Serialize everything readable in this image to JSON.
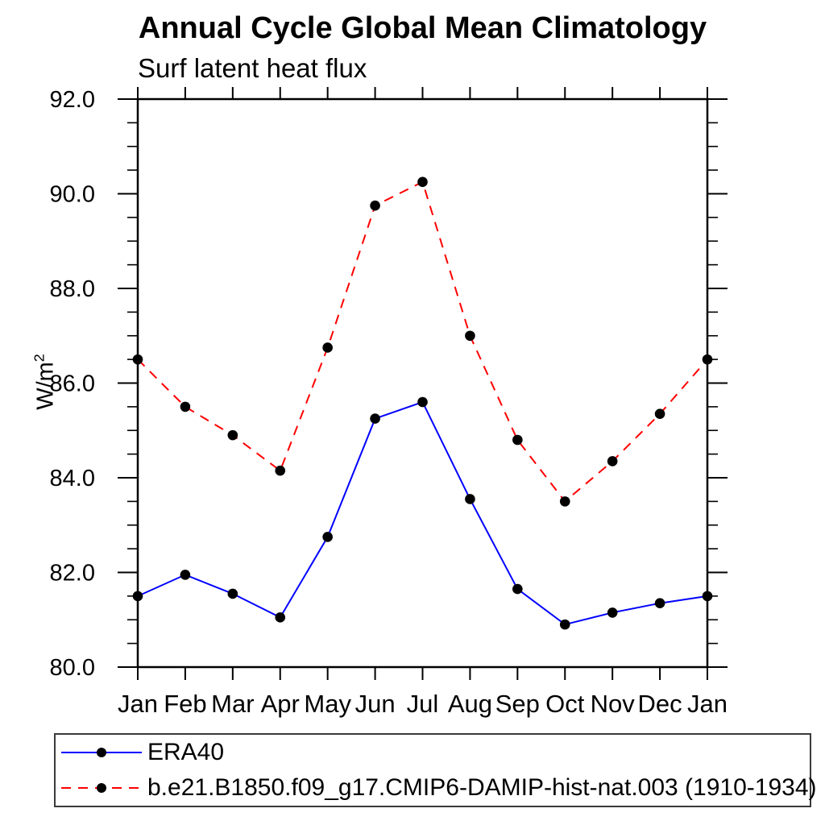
{
  "chart_data": {
    "type": "line",
    "title": "Annual Cycle Global Mean Climatology",
    "subtitle": "Surf latent heat flux",
    "ylabel_base": "W/m",
    "ylabel_sup": "2",
    "xlabel": "",
    "categories": [
      "Jan",
      "Feb",
      "Mar",
      "Apr",
      "May",
      "Jun",
      "Jul",
      "Aug",
      "Sep",
      "Oct",
      "Nov",
      "Dec",
      "Jan"
    ],
    "ylim": [
      80.0,
      92.0
    ],
    "ytick_interval": 2.0,
    "yminor_interval": 0.5,
    "ytick_labels": [
      "80.0",
      "82.0",
      "84.0",
      "86.0",
      "88.0",
      "90.0",
      "92.0"
    ],
    "grid": false,
    "legend_position": "bottom-left-box",
    "marker_color": "#000000",
    "axis_color": "#000000",
    "series": [
      {
        "name": "ERA40",
        "color": "#0000ff",
        "style": "solid",
        "marker": "filled-circle",
        "values": [
          81.5,
          81.95,
          81.55,
          81.05,
          82.75,
          85.25,
          85.6,
          83.55,
          81.65,
          80.9,
          81.15,
          81.35,
          81.5
        ]
      },
      {
        "name": "b.e21.B1850.f09_g17.CMIP6-DAMIP-hist-nat.003 (1910-1934)",
        "color": "#ff0000",
        "style": "dashed",
        "marker": "filled-circle",
        "values": [
          86.5,
          85.5,
          84.9,
          84.15,
          86.75,
          89.75,
          90.25,
          87.0,
          84.8,
          83.5,
          84.35,
          85.35,
          86.5
        ]
      }
    ]
  }
}
